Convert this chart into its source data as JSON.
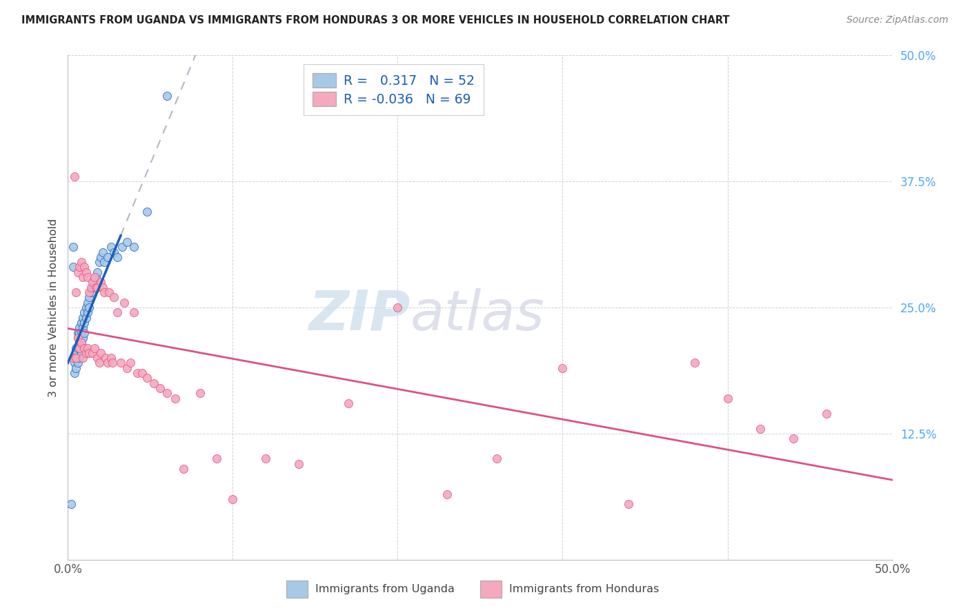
{
  "title": "IMMIGRANTS FROM UGANDA VS IMMIGRANTS FROM HONDURAS 3 OR MORE VEHICLES IN HOUSEHOLD CORRELATION CHART",
  "source": "Source: ZipAtlas.com",
  "ylabel": "3 or more Vehicles in Household",
  "xlim": [
    0.0,
    0.5
  ],
  "ylim": [
    0.0,
    0.5
  ],
  "legend_r_uganda": "0.317",
  "legend_n_uganda": "52",
  "legend_r_honduras": "-0.036",
  "legend_n_honduras": "69",
  "uganda_color": "#a8c8e8",
  "honduras_color": "#f5a8be",
  "trendline_uganda_color": "#1a5eb8",
  "trendline_honduras_color": "#e05080",
  "watermark_zip": "ZIP",
  "watermark_atlas": "atlas",
  "uganda_x": [
    0.002,
    0.003,
    0.003,
    0.004,
    0.004,
    0.004,
    0.005,
    0.005,
    0.005,
    0.005,
    0.006,
    0.006,
    0.006,
    0.006,
    0.007,
    0.007,
    0.007,
    0.007,
    0.008,
    0.008,
    0.008,
    0.008,
    0.009,
    0.009,
    0.009,
    0.01,
    0.01,
    0.01,
    0.011,
    0.011,
    0.012,
    0.012,
    0.013,
    0.013,
    0.014,
    0.015,
    0.016,
    0.017,
    0.018,
    0.019,
    0.02,
    0.021,
    0.022,
    0.024,
    0.026,
    0.028,
    0.03,
    0.033,
    0.036,
    0.04,
    0.048,
    0.06
  ],
  "uganda_y": [
    0.055,
    0.31,
    0.29,
    0.2,
    0.195,
    0.185,
    0.21,
    0.205,
    0.2,
    0.19,
    0.225,
    0.22,
    0.21,
    0.195,
    0.23,
    0.225,
    0.215,
    0.2,
    0.235,
    0.225,
    0.215,
    0.205,
    0.24,
    0.23,
    0.22,
    0.245,
    0.235,
    0.225,
    0.25,
    0.24,
    0.255,
    0.245,
    0.26,
    0.25,
    0.265,
    0.27,
    0.275,
    0.28,
    0.285,
    0.295,
    0.3,
    0.305,
    0.295,
    0.3,
    0.31,
    0.305,
    0.3,
    0.31,
    0.315,
    0.31,
    0.345,
    0.46
  ],
  "honduras_x": [
    0.003,
    0.004,
    0.005,
    0.005,
    0.006,
    0.006,
    0.007,
    0.007,
    0.008,
    0.008,
    0.009,
    0.009,
    0.01,
    0.01,
    0.011,
    0.011,
    0.012,
    0.012,
    0.013,
    0.013,
    0.014,
    0.015,
    0.015,
    0.016,
    0.016,
    0.017,
    0.018,
    0.018,
    0.019,
    0.02,
    0.02,
    0.021,
    0.022,
    0.023,
    0.024,
    0.025,
    0.026,
    0.027,
    0.028,
    0.03,
    0.032,
    0.034,
    0.036,
    0.038,
    0.04,
    0.042,
    0.045,
    0.048,
    0.052,
    0.056,
    0.06,
    0.065,
    0.07,
    0.08,
    0.09,
    0.1,
    0.12,
    0.14,
    0.17,
    0.2,
    0.23,
    0.26,
    0.3,
    0.34,
    0.38,
    0.4,
    0.42,
    0.44,
    0.46
  ],
  "honduras_y": [
    0.2,
    0.38,
    0.265,
    0.2,
    0.285,
    0.22,
    0.29,
    0.21,
    0.295,
    0.215,
    0.28,
    0.2,
    0.29,
    0.21,
    0.285,
    0.205,
    0.28,
    0.21,
    0.265,
    0.205,
    0.27,
    0.275,
    0.205,
    0.28,
    0.21,
    0.27,
    0.27,
    0.2,
    0.195,
    0.275,
    0.205,
    0.27,
    0.265,
    0.2,
    0.195,
    0.265,
    0.2,
    0.195,
    0.26,
    0.245,
    0.195,
    0.255,
    0.19,
    0.195,
    0.245,
    0.185,
    0.185,
    0.18,
    0.175,
    0.17,
    0.165,
    0.16,
    0.09,
    0.165,
    0.1,
    0.06,
    0.1,
    0.095,
    0.155,
    0.25,
    0.065,
    0.1,
    0.19,
    0.055,
    0.195,
    0.16,
    0.13,
    0.12,
    0.145
  ]
}
